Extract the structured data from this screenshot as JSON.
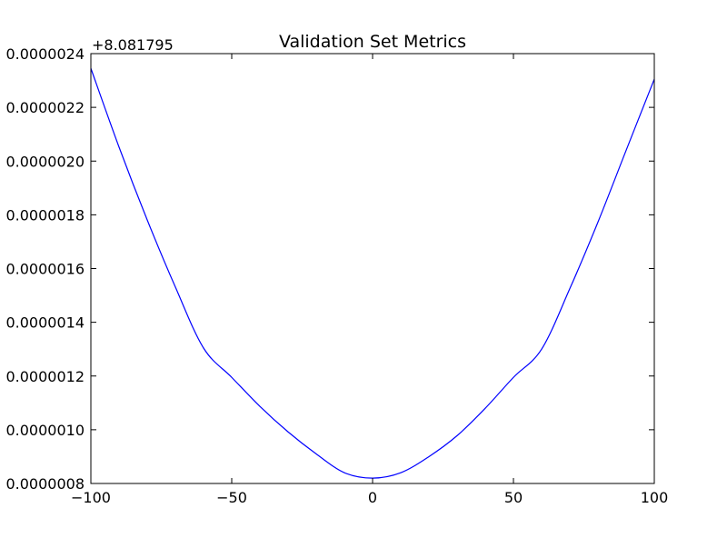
{
  "chart_data": {
    "type": "line",
    "title": "Validation Set Metrics",
    "xlabel": "",
    "ylabel": "",
    "y_offset_label": "+8.081795",
    "xlim": [
      -100,
      100
    ],
    "ylim": [
      8e-07,
      2.4e-06
    ],
    "x_ticks": [
      -100,
      -50,
      0,
      50,
      100
    ],
    "x_tick_labels": [
      "−100",
      "−50",
      "0",
      "50",
      "100"
    ],
    "y_ticks": [
      8e-07,
      1e-06,
      1.2e-06,
      1.4e-06,
      1.6e-06,
      1.8e-06,
      2e-06,
      2.2e-06,
      2.4e-06
    ],
    "y_tick_labels": [
      "0.0000008",
      "0.0000010",
      "0.0000012",
      "0.0000014",
      "0.0000016",
      "0.0000018",
      "0.0000020",
      "0.0000022",
      "0.0000024"
    ],
    "grid": false,
    "series": [
      {
        "color": "#0000ff",
        "x": [
          -100,
          -90,
          -80,
          -70,
          -60,
          -50,
          -40,
          -30,
          -20,
          -10,
          0,
          10,
          20,
          30,
          40,
          50,
          60,
          70,
          80,
          90,
          100
        ],
        "y": [
          2.345e-06,
          2.052e-06,
          1.781e-06,
          1.531e-06,
          1.304e-06,
          1.195e-06,
          1.087e-06,
          9.92e-07,
          9.1e-07,
          8.4e-07,
          8.2e-07,
          8.4e-07,
          9e-07,
          9.78e-07,
          1.08e-06,
          1.195e-06,
          1.3e-06,
          1.525e-06,
          1.773e-06,
          2.04e-06,
          2.305e-06
        ]
      }
    ]
  }
}
